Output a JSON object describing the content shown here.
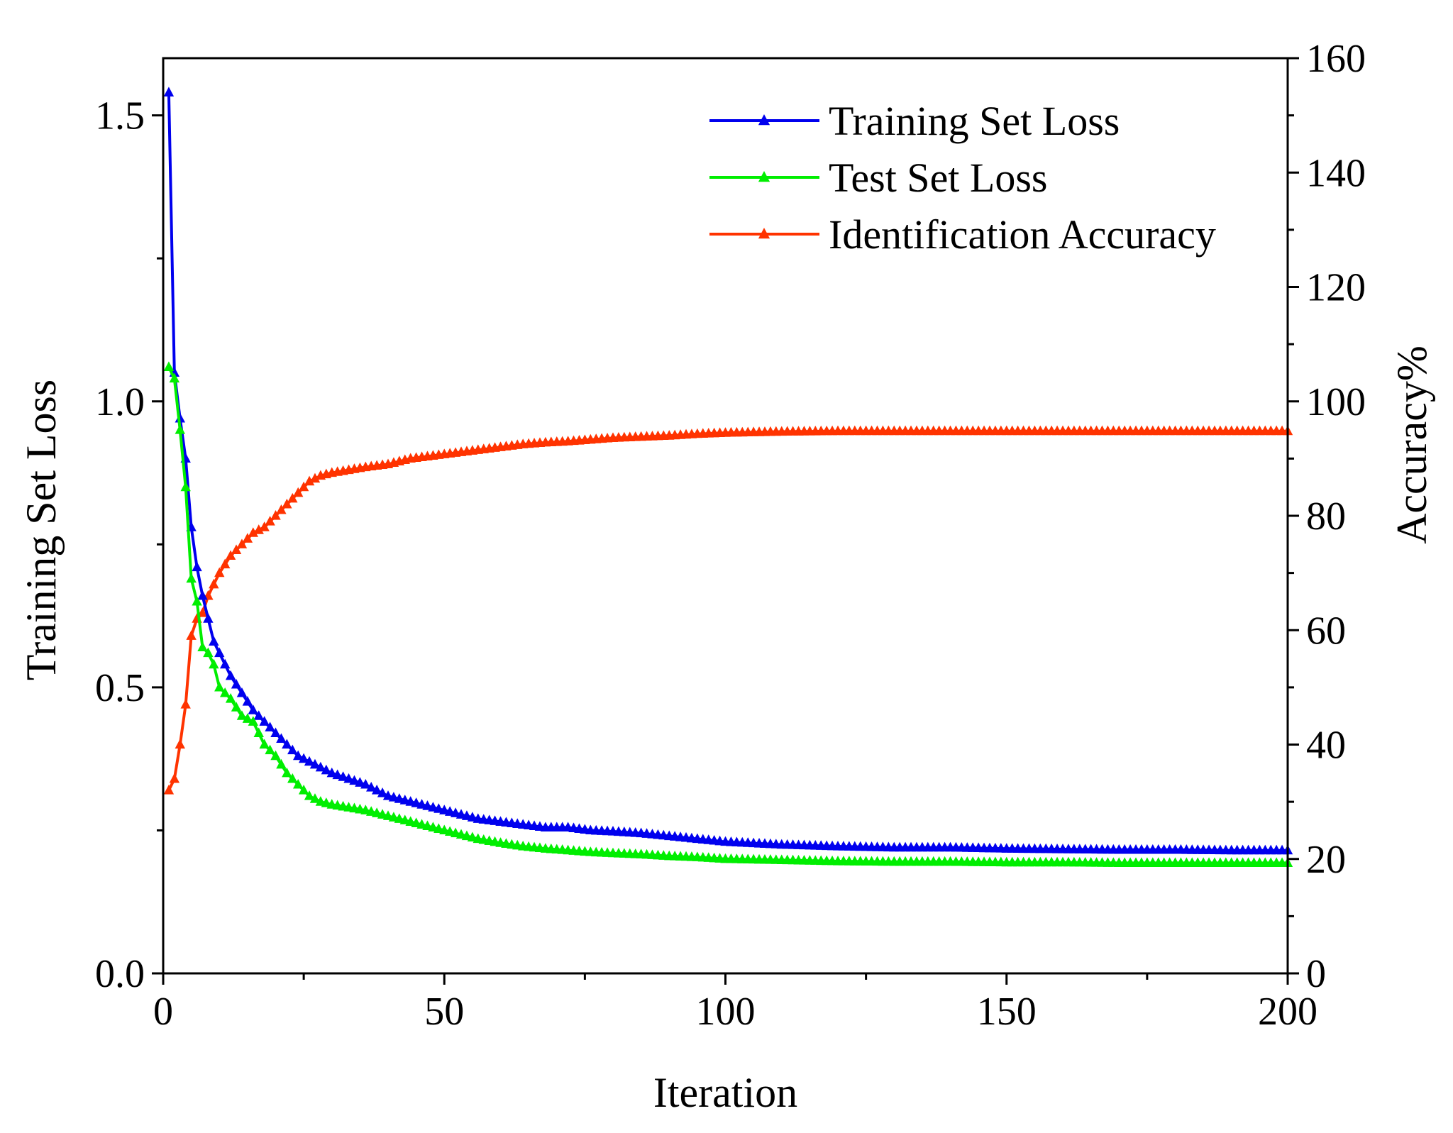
{
  "chart_data": {
    "type": "line",
    "title": "",
    "xlabel": "Iteration",
    "ylabel_left": "Training Set Loss",
    "ylabel_right": "Accuracy%",
    "xlim": [
      0,
      200
    ],
    "ylim_left": [
      0.0,
      1.6
    ],
    "ylim_right": [
      0,
      160
    ],
    "x_ticks": [
      "0",
      "50",
      "100",
      "150",
      "200"
    ],
    "y_left_ticks": [
      "0.0",
      "0.5",
      "1.0",
      "1.5"
    ],
    "y_right_ticks": [
      "0",
      "20",
      "40",
      "60",
      "80",
      "100",
      "120",
      "140",
      "160"
    ],
    "grid": false,
    "legend_position": "top-right",
    "marker": "triangle",
    "series": [
      {
        "name": "Training Set Loss",
        "axis": "left",
        "color": "#0000ee",
        "x": [
          1,
          2,
          3,
          4,
          5,
          6,
          7,
          8,
          9,
          10,
          12,
          14,
          16,
          18,
          20,
          22,
          24,
          26,
          28,
          30,
          33,
          36,
          40,
          44,
          48,
          52,
          56,
          60,
          64,
          68,
          72,
          76,
          80,
          85,
          90,
          95,
          100,
          110,
          120,
          130,
          140,
          150,
          160,
          170,
          180,
          190,
          200
        ],
        "y": [
          1.54,
          1.05,
          0.97,
          0.9,
          0.78,
          0.71,
          0.66,
          0.62,
          0.58,
          0.56,
          0.52,
          0.49,
          0.46,
          0.44,
          0.42,
          0.4,
          0.38,
          0.37,
          0.36,
          0.35,
          0.34,
          0.33,
          0.31,
          0.3,
          0.29,
          0.28,
          0.27,
          0.265,
          0.26,
          0.255,
          0.255,
          0.25,
          0.248,
          0.245,
          0.24,
          0.235,
          0.23,
          0.225,
          0.222,
          0.22,
          0.22,
          0.218,
          0.217,
          0.216,
          0.216,
          0.215,
          0.215
        ]
      },
      {
        "name": "Test Set Loss",
        "axis": "left",
        "color": "#00ee00",
        "x": [
          1,
          2,
          3,
          4,
          5,
          6,
          7,
          8,
          9,
          10,
          12,
          14,
          16,
          18,
          20,
          22,
          24,
          26,
          28,
          30,
          33,
          36,
          40,
          44,
          48,
          52,
          56,
          60,
          64,
          68,
          72,
          76,
          80,
          85,
          90,
          95,
          100,
          110,
          120,
          130,
          140,
          150,
          160,
          170,
          180,
          190,
          200
        ],
        "y": [
          1.06,
          1.04,
          0.95,
          0.85,
          0.69,
          0.65,
          0.57,
          0.56,
          0.54,
          0.5,
          0.48,
          0.45,
          0.44,
          0.4,
          0.38,
          0.35,
          0.33,
          0.31,
          0.3,
          0.295,
          0.29,
          0.285,
          0.275,
          0.265,
          0.255,
          0.245,
          0.235,
          0.228,
          0.222,
          0.218,
          0.215,
          0.212,
          0.21,
          0.208,
          0.205,
          0.203,
          0.2,
          0.198,
          0.196,
          0.195,
          0.195,
          0.194,
          0.194,
          0.193,
          0.193,
          0.193,
          0.193
        ]
      },
      {
        "name": "Identification Accuracy",
        "axis": "right",
        "color": "#ff3300",
        "x": [
          1,
          2,
          3,
          4,
          5,
          6,
          7,
          8,
          9,
          10,
          12,
          14,
          16,
          18,
          20,
          22,
          24,
          26,
          28,
          30,
          33,
          36,
          40,
          44,
          48,
          52,
          56,
          60,
          64,
          68,
          72,
          76,
          80,
          85,
          90,
          95,
          100,
          110,
          120,
          130,
          140,
          150,
          160,
          170,
          180,
          190,
          200
        ],
        "y": [
          32,
          34,
          40,
          47,
          59,
          62,
          63,
          66,
          68,
          70,
          73,
          75,
          77,
          78,
          80,
          82,
          84,
          86,
          87,
          87.5,
          88,
          88.5,
          89,
          90,
          90.5,
          91,
          91.5,
          92,
          92.5,
          92.8,
          93,
          93.3,
          93.6,
          93.8,
          94,
          94.3,
          94.5,
          94.7,
          94.8,
          94.8,
          94.8,
          94.8,
          94.8,
          94.8,
          94.8,
          94.8,
          94.8
        ]
      }
    ]
  }
}
